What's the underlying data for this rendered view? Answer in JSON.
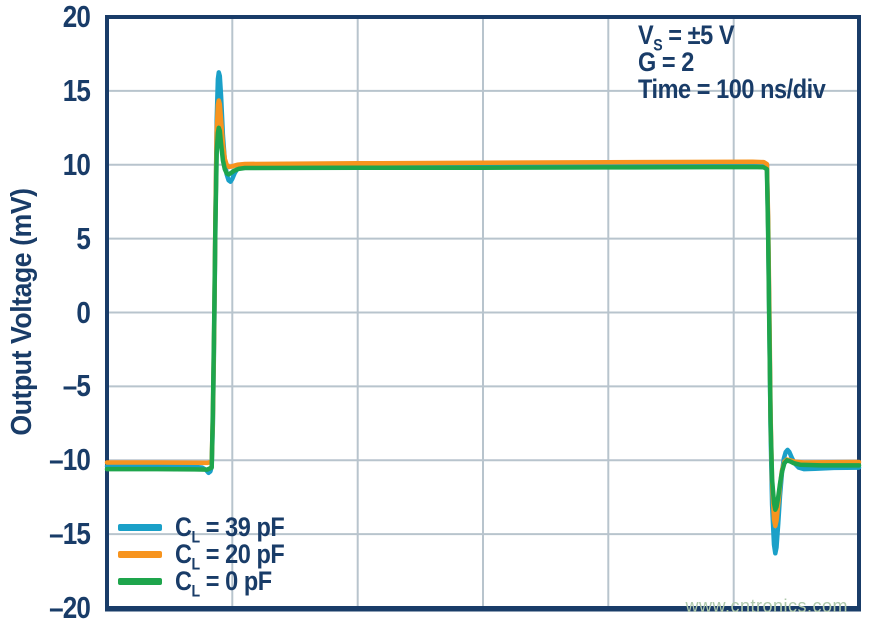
{
  "figure": {
    "annotation": {
      "line1": {
        "pre": "V",
        "sub": "S",
        "post": " = ±5 V"
      },
      "line2": "G = 2",
      "line3": "Time = 100 ns/div"
    },
    "watermark": "www.cntronics.com"
  },
  "colors": {
    "navy": "#193c68",
    "grid": "#b8c4cd",
    "background": "#ffffff",
    "watermark": "#afc9ac",
    "trace_blue": "#1aa0c8",
    "trace_orange": "#f7941e",
    "trace_green": "#1ea54c"
  },
  "chart_data": {
    "type": "line",
    "title": "",
    "xlabel": "",
    "ylabel": "Output Voltage (mV)",
    "ylim": [
      -20,
      20
    ],
    "ytick_step": 5,
    "ytick_values": [
      20,
      15,
      10,
      5,
      0,
      -5,
      -10,
      -15,
      -20
    ],
    "ytick_labels": [
      "20",
      "15",
      "10",
      "5",
      "0",
      "–5",
      "–10",
      "–15",
      "–20"
    ],
    "x_axis": {
      "unit": "ns",
      "ns_per_div": 100,
      "divisions": 6,
      "range_ns": [
        0,
        600
      ]
    },
    "grid": true,
    "legend_position": "bottom-left",
    "annotations": [
      "Vs = ±5 V",
      "G = 2",
      "Time = 100 ns/div"
    ],
    "series": [
      {
        "name": "CL = 39 pF",
        "slug": "cl-39pf",
        "legend": {
          "sym": "C",
          "sub": "L",
          "rest": " = 39 pF"
        },
        "color": "#1aa0c8",
        "points": [
          [
            0,
            -10.4
          ],
          [
            30,
            -10.4
          ],
          [
            55,
            -10.42
          ],
          [
            70,
            -10.45
          ],
          [
            76,
            -10.5
          ],
          [
            79,
            -10.65
          ],
          [
            81,
            -10.85
          ],
          [
            82.5,
            -10.75
          ],
          [
            83.5,
            -10.4
          ],
          [
            84.5,
            -7.5
          ],
          [
            85.5,
            -1.5
          ],
          [
            86.5,
            6.0
          ],
          [
            87.5,
            13.0
          ],
          [
            88.5,
            15.8
          ],
          [
            89.2,
            16.25
          ],
          [
            90,
            16.0
          ],
          [
            91,
            14.6
          ],
          [
            92.5,
            12.0
          ],
          [
            94,
            10.3
          ],
          [
            95.5,
            9.35
          ],
          [
            97,
            8.95
          ],
          [
            98.5,
            8.85
          ],
          [
            100,
            9.05
          ],
          [
            102,
            9.45
          ],
          [
            104.5,
            9.8
          ],
          [
            108,
            9.95
          ],
          [
            130,
            9.95
          ],
          [
            200,
            9.98
          ],
          [
            300,
            10.0
          ],
          [
            400,
            10.05
          ],
          [
            470,
            10.08
          ],
          [
            515,
            10.1
          ],
          [
            524,
            10.1
          ],
          [
            526.5,
            10.0
          ],
          [
            527.5,
            6.0
          ],
          [
            528.5,
            -1.0
          ],
          [
            529.5,
            -8.0
          ],
          [
            530.7,
            -13.0
          ],
          [
            532.2,
            -15.7
          ],
          [
            533.2,
            -16.3
          ],
          [
            534.2,
            -15.9
          ],
          [
            535.5,
            -14.3
          ],
          [
            537,
            -12.4
          ],
          [
            538.5,
            -10.9
          ],
          [
            540,
            -9.9
          ],
          [
            541.5,
            -9.45
          ],
          [
            543,
            -9.3
          ],
          [
            544.5,
            -9.45
          ],
          [
            546.5,
            -9.85
          ],
          [
            549,
            -10.25
          ],
          [
            552,
            -10.5
          ],
          [
            556,
            -10.6
          ],
          [
            565,
            -10.58
          ],
          [
            580,
            -10.52
          ],
          [
            600,
            -10.5
          ]
        ]
      },
      {
        "name": "CL = 20 pF",
        "slug": "cl-20pf",
        "legend": {
          "sym": "C",
          "sub": "L",
          "rest": " = 20 pF"
        },
        "color": "#f7941e",
        "points": [
          [
            0,
            -10.15
          ],
          [
            40,
            -10.15
          ],
          [
            70,
            -10.17
          ],
          [
            80,
            -10.18
          ],
          [
            83.5,
            -10.1
          ],
          [
            84.5,
            -7.0
          ],
          [
            85.5,
            -1.0
          ],
          [
            86.5,
            6.5
          ],
          [
            87.5,
            12.3
          ],
          [
            88.5,
            14.05
          ],
          [
            89.2,
            14.35
          ],
          [
            90,
            14.1
          ],
          [
            91,
            13.0
          ],
          [
            92.5,
            11.4
          ],
          [
            94,
            10.4
          ],
          [
            95.5,
            10.0
          ],
          [
            97.5,
            9.85
          ],
          [
            100,
            9.9
          ],
          [
            104,
            10.0
          ],
          [
            110,
            10.05
          ],
          [
            200,
            10.1
          ],
          [
            300,
            10.13
          ],
          [
            400,
            10.17
          ],
          [
            515,
            10.2
          ],
          [
            524,
            10.18
          ],
          [
            526.5,
            10.05
          ],
          [
            527.5,
            6.5
          ],
          [
            528.5,
            0.0
          ],
          [
            529.5,
            -7.0
          ],
          [
            530.7,
            -11.5
          ],
          [
            532.2,
            -14.0
          ],
          [
            533.2,
            -14.45
          ],
          [
            534.2,
            -14.1
          ],
          [
            535.5,
            -13.0
          ],
          [
            537,
            -11.7
          ],
          [
            538.5,
            -10.7
          ],
          [
            540.5,
            -10.1
          ],
          [
            542.5,
            -9.95
          ],
          [
            545,
            -10.0
          ],
          [
            549,
            -10.1
          ],
          [
            556,
            -10.15
          ],
          [
            575,
            -10.14
          ],
          [
            600,
            -10.12
          ]
        ]
      },
      {
        "name": "CL = 0 pF",
        "slug": "cl-0pf",
        "legend": {
          "sym": "C",
          "sub": "L",
          "rest": " = 0 pF"
        },
        "color": "#1ea54c",
        "points": [
          [
            0,
            -10.6
          ],
          [
            40,
            -10.6
          ],
          [
            70,
            -10.62
          ],
          [
            80,
            -10.63
          ],
          [
            83.5,
            -10.5
          ],
          [
            84.5,
            -6.5
          ],
          [
            85.5,
            -0.5
          ],
          [
            86.5,
            6.0
          ],
          [
            87.5,
            10.8
          ],
          [
            88.5,
            12.15
          ],
          [
            89.2,
            12.5
          ],
          [
            90,
            12.3
          ],
          [
            91,
            11.4
          ],
          [
            92.5,
            10.3
          ],
          [
            94,
            9.7
          ],
          [
            95.5,
            9.42
          ],
          [
            97,
            9.35
          ],
          [
            99,
            9.45
          ],
          [
            101.5,
            9.6
          ],
          [
            105,
            9.72
          ],
          [
            110,
            9.78
          ],
          [
            200,
            9.8
          ],
          [
            300,
            9.8
          ],
          [
            400,
            9.82
          ],
          [
            515,
            9.85
          ],
          [
            524,
            9.83
          ],
          [
            526.5,
            9.7
          ],
          [
            527.5,
            5.5
          ],
          [
            528.5,
            -1.5
          ],
          [
            529.5,
            -7.5
          ],
          [
            530.7,
            -11.3
          ],
          [
            532.2,
            -12.9
          ],
          [
            533.2,
            -13.35
          ],
          [
            534.2,
            -13.15
          ],
          [
            535.5,
            -12.5
          ],
          [
            537,
            -11.6
          ],
          [
            538.5,
            -10.8
          ],
          [
            540.5,
            -10.2
          ],
          [
            542.5,
            -10.0
          ],
          [
            545,
            -10.08
          ],
          [
            548,
            -10.2
          ],
          [
            553,
            -10.3
          ],
          [
            570,
            -10.35
          ],
          [
            600,
            -10.35
          ]
        ]
      }
    ]
  }
}
